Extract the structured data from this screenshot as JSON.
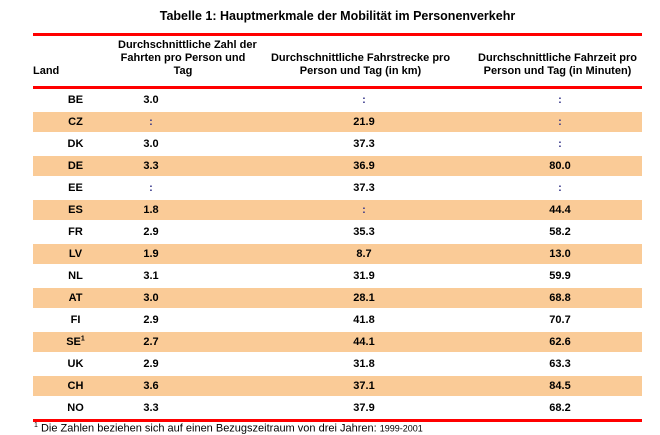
{
  "title": "Tabelle 1: Hauptmerkmale der Mobilität im Personenverkehr",
  "table": {
    "header": {
      "land": "Land",
      "col2": {
        "l1": "Durchschnittliche Zahl der",
        "l2": "Fahrten pro Person und",
        "l3": "Tag"
      },
      "col3": {
        "l1": "Durchschnittliche Fahrstrecke pro",
        "l2": "Person und Tag (in km)"
      },
      "col4": {
        "l1": "Durchschnittliche Fahrzeit pro",
        "l2": "Person und Tag (in Minuten)"
      }
    },
    "na_symbol": ":",
    "rows": [
      {
        "land": "BE",
        "sup": "",
        "trips": "3.0",
        "distance": ":",
        "time": ":"
      },
      {
        "land": "CZ",
        "sup": "",
        "trips": ":",
        "distance": "21.9",
        "time": ":"
      },
      {
        "land": "DK",
        "sup": "",
        "trips": "3.0",
        "distance": "37.3",
        "time": ":"
      },
      {
        "land": "DE",
        "sup": "",
        "trips": "3.3",
        "distance": "36.9",
        "time": "80.0"
      },
      {
        "land": "EE",
        "sup": "",
        "trips": ":",
        "distance": "37.3",
        "time": ":"
      },
      {
        "land": "ES",
        "sup": "",
        "trips": "1.8",
        "distance": ":",
        "time": "44.4"
      },
      {
        "land": "FR",
        "sup": "",
        "trips": "2.9",
        "distance": "35.3",
        "time": "58.2"
      },
      {
        "land": "LV",
        "sup": "",
        "trips": "1.9",
        "distance": "8.7",
        "time": "13.0"
      },
      {
        "land": "NL",
        "sup": "",
        "trips": "3.1",
        "distance": "31.9",
        "time": "59.9"
      },
      {
        "land": "AT",
        "sup": "",
        "trips": "3.0",
        "distance": "28.1",
        "time": "68.8"
      },
      {
        "land": "FI",
        "sup": "",
        "trips": "2.9",
        "distance": "41.8",
        "time": "70.7"
      },
      {
        "land": "SE",
        "sup": "1",
        "trips": "2.7",
        "distance": "44.1",
        "time": "62.6"
      },
      {
        "land": "UK",
        "sup": "",
        "trips": "2.9",
        "distance": "31.8",
        "time": "63.3"
      },
      {
        "land": "CH",
        "sup": "",
        "trips": "3.6",
        "distance": "37.1",
        "time": "84.5"
      },
      {
        "land": "NO",
        "sup": "",
        "trips": "3.3",
        "distance": "37.9",
        "time": "68.2"
      }
    ]
  },
  "footnote": {
    "sup": "1",
    "text": " Die Zahlen beziehen sich auf einen Bezugszeitraum von drei Jahren: ",
    "period": "1999-2001"
  },
  "colors": {
    "rule_red": "#ff0000",
    "stripe_orange": "#facb97",
    "na_blue": "#333388"
  }
}
